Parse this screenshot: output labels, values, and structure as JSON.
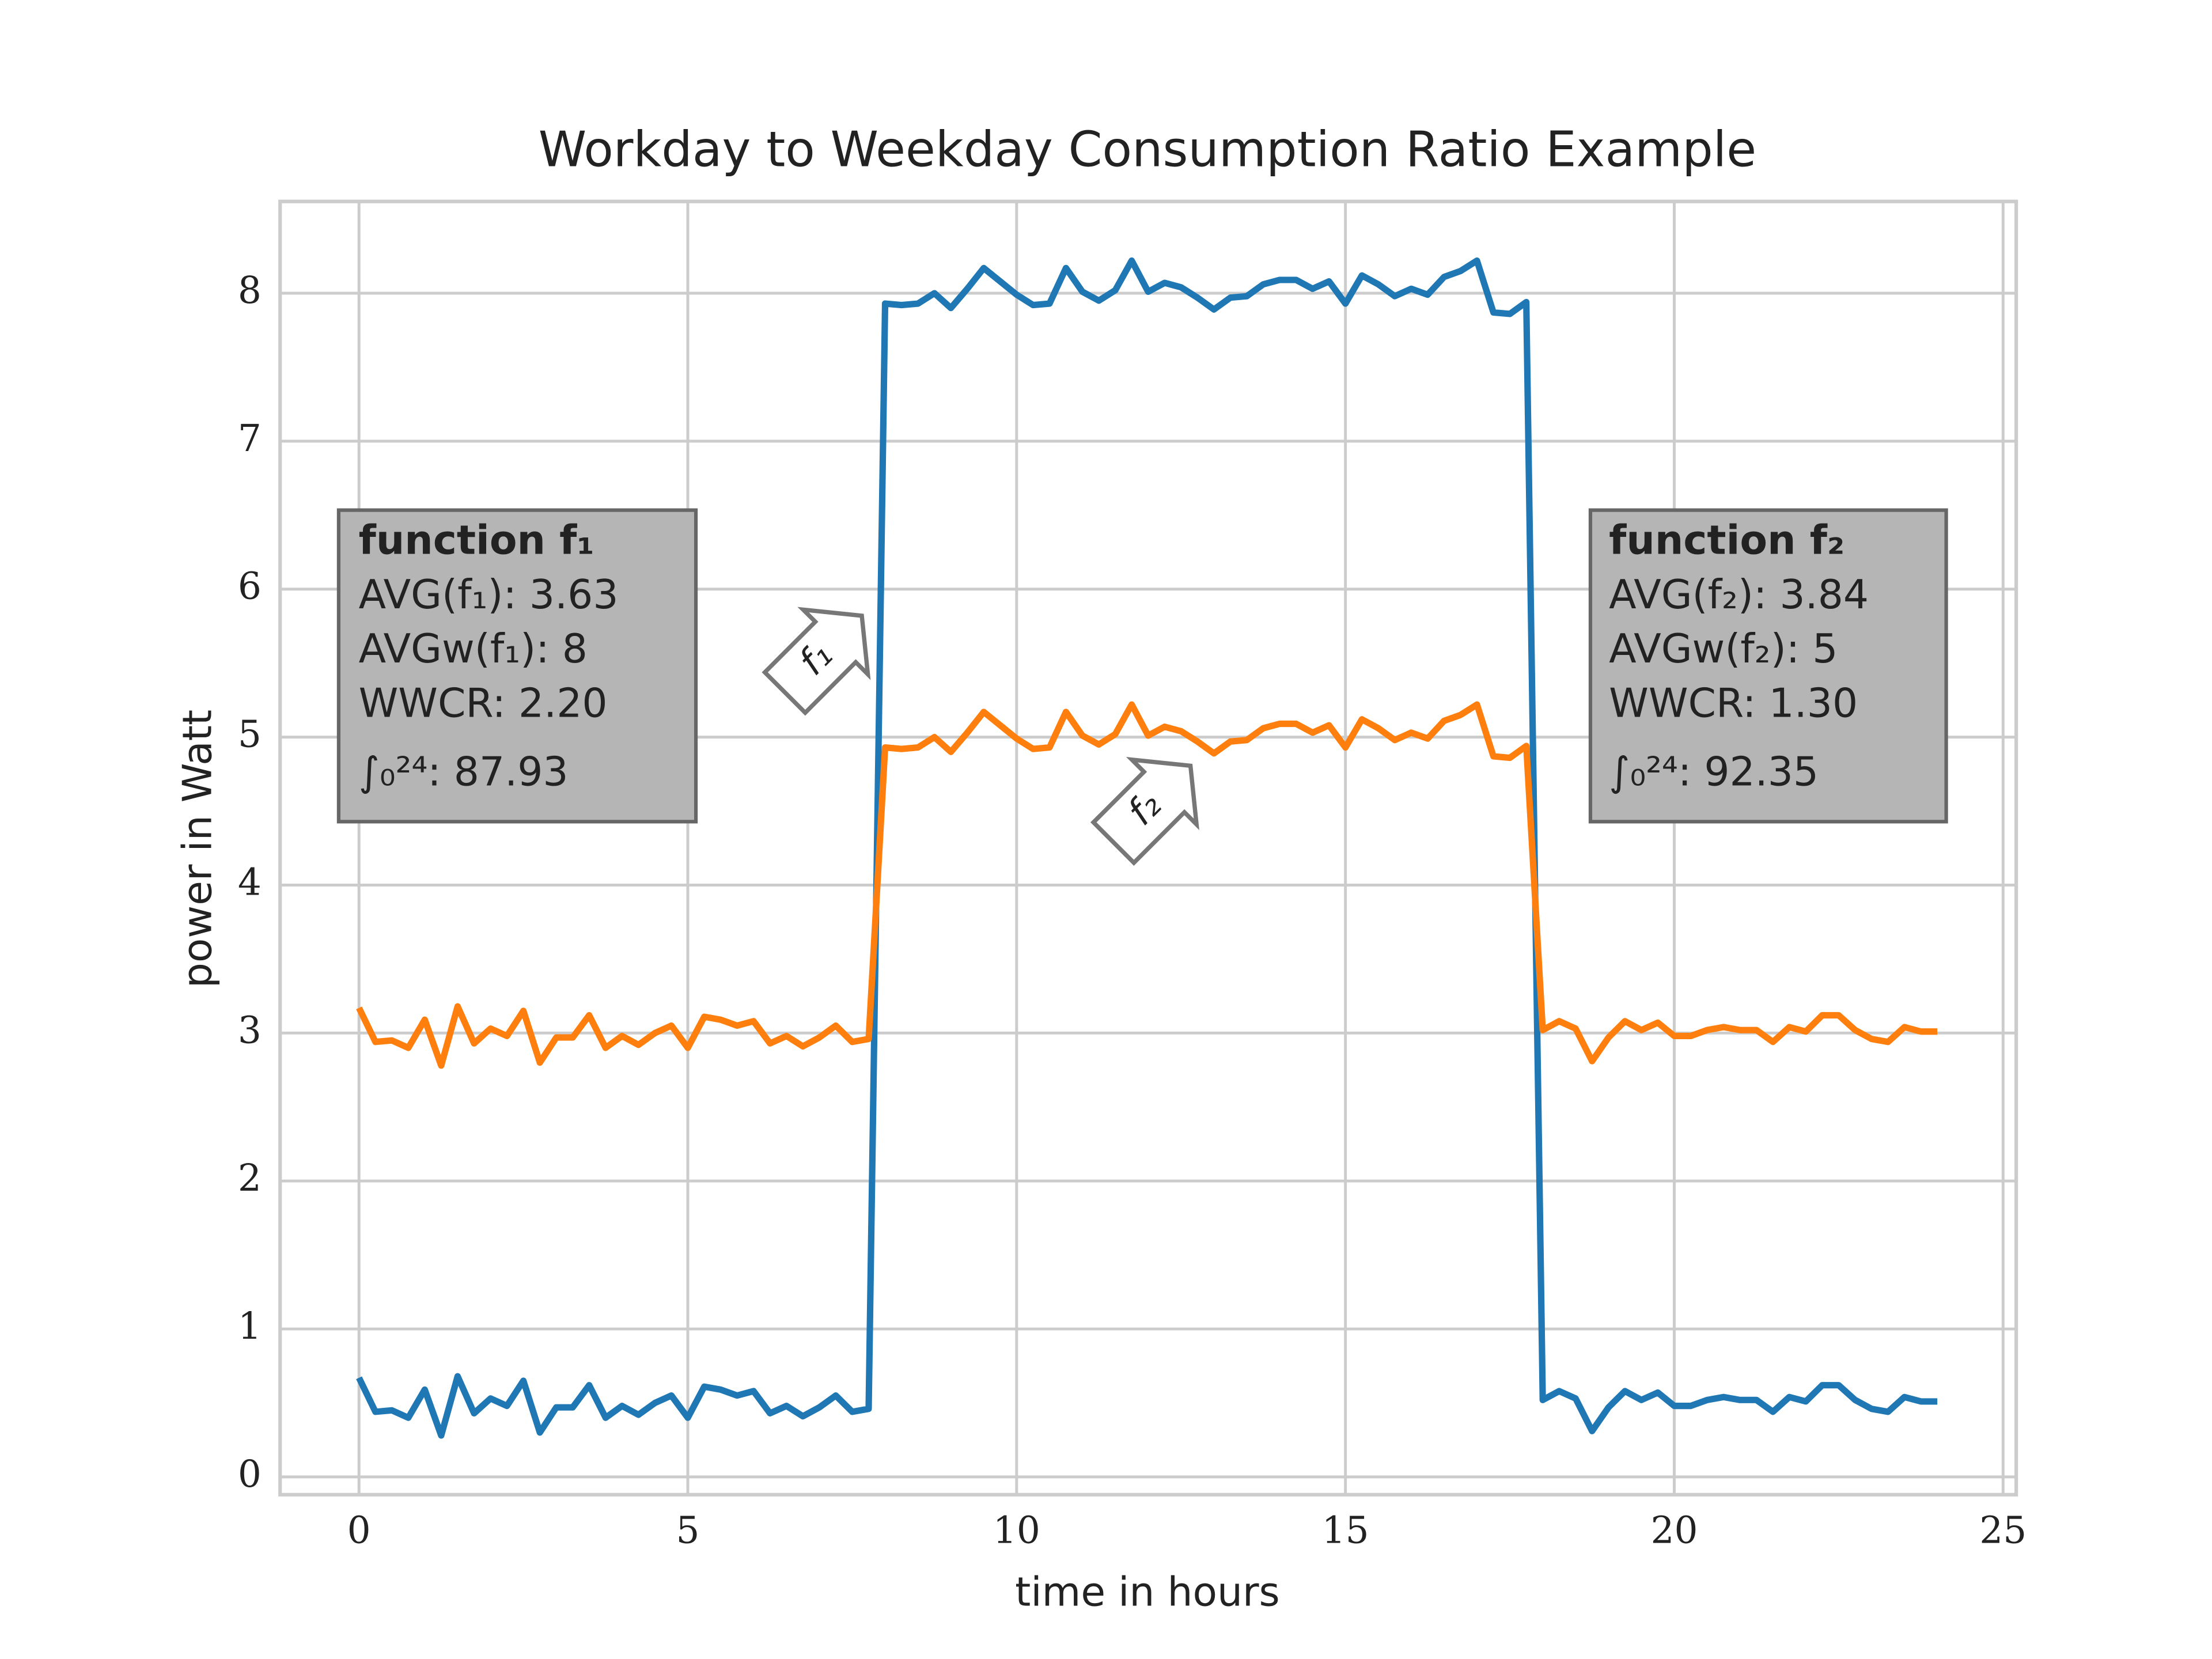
{
  "chart_data": {
    "type": "line",
    "title": "Workday to Weekday Consumption Ratio Example",
    "xlabel": "time in hours",
    "ylabel": "power in Watt",
    "xlim": [
      -1.2,
      25.2
    ],
    "ylim": [
      -0.12,
      8.62
    ],
    "xticks": [
      0,
      5,
      10,
      15,
      20,
      25
    ],
    "yticks": [
      0,
      1,
      2,
      3,
      4,
      5,
      6,
      7,
      8
    ],
    "grid": true,
    "x": [
      0,
      0.25,
      0.5,
      0.75,
      1,
      1.25,
      1.5,
      1.75,
      2,
      2.25,
      2.5,
      2.75,
      3,
      3.25,
      3.5,
      3.75,
      4,
      4.25,
      4.5,
      4.75,
      5,
      5.25,
      5.5,
      5.75,
      6,
      6.25,
      6.5,
      6.75,
      7,
      7.25,
      7.5,
      7.75,
      8,
      8.25,
      8.5,
      8.75,
      9,
      9.25,
      9.5,
      9.75,
      10,
      10.25,
      10.5,
      10.75,
      11,
      11.25,
      11.5,
      11.75,
      12,
      12.25,
      12.5,
      12.75,
      13,
      13.25,
      13.5,
      13.75,
      14,
      14.25,
      14.5,
      14.75,
      15,
      15.25,
      15.5,
      15.75,
      16,
      16.25,
      16.5,
      16.75,
      17,
      17.25,
      17.5,
      17.75,
      18,
      18.25,
      18.5,
      18.75,
      19,
      19.25,
      19.5,
      19.75,
      20,
      20.25,
      20.5,
      20.75,
      21,
      21.25,
      21.5,
      21.75,
      22,
      22.25,
      22.5,
      22.75,
      23,
      23.25,
      23.5,
      23.75,
      24
    ],
    "series": [
      {
        "color": "#1f77b4",
        "values": [
          0.67,
          0.44,
          0.45,
          0.4,
          0.59,
          0.28,
          0.68,
          0.43,
          0.53,
          0.48,
          0.65,
          0.3,
          0.47,
          0.47,
          0.62,
          0.4,
          0.48,
          0.42,
          0.5,
          0.55,
          0.4,
          0.61,
          0.59,
          0.55,
          0.58,
          0.43,
          0.48,
          0.41,
          0.47,
          0.55,
          0.44,
          0.46,
          7.93,
          7.92,
          7.93,
          8.0,
          7.9,
          8.03,
          8.17,
          8.08,
          7.99,
          7.92,
          7.93,
          8.17,
          8.01,
          7.95,
          8.02,
          8.22,
          8.01,
          8.07,
          8.04,
          7.97,
          7.89,
          7.97,
          7.98,
          8.06,
          8.09,
          8.09,
          8.03,
          8.08,
          7.93,
          8.12,
          8.06,
          7.98,
          8.03,
          7.99,
          8.11,
          8.15,
          8.22,
          7.87,
          7.86,
          7.94,
          0.52,
          0.58,
          0.53,
          0.31,
          0.47,
          0.58,
          0.52,
          0.57,
          0.48,
          0.48,
          0.52,
          0.54,
          0.52,
          0.52,
          0.44,
          0.54,
          0.51,
          0.62,
          0.62,
          0.52,
          0.46,
          0.44,
          0.54,
          0.51,
          0.51
        ]
      },
      {
        "color": "#ff7f0e",
        "values": [
          3.17,
          2.94,
          2.95,
          2.9,
          3.09,
          2.78,
          3.18,
          2.93,
          3.03,
          2.98,
          3.15,
          2.8,
          2.97,
          2.97,
          3.12,
          2.9,
          2.98,
          2.92,
          3.0,
          3.05,
          2.9,
          3.11,
          3.09,
          3.05,
          3.08,
          2.93,
          2.98,
          2.91,
          2.97,
          3.05,
          2.94,
          2.96,
          4.93,
          4.92,
          4.93,
          5.0,
          4.9,
          5.03,
          5.17,
          5.08,
          4.99,
          4.92,
          4.93,
          5.17,
          5.01,
          4.95,
          5.02,
          5.22,
          5.01,
          5.07,
          5.04,
          4.97,
          4.89,
          4.97,
          4.98,
          5.06,
          5.09,
          5.09,
          5.03,
          5.08,
          4.93,
          5.12,
          5.06,
          4.98,
          5.03,
          4.99,
          5.11,
          5.15,
          5.22,
          4.87,
          4.86,
          4.94,
          3.02,
          3.08,
          3.03,
          2.81,
          2.97,
          3.08,
          3.02,
          3.07,
          2.98,
          2.98,
          3.02,
          3.04,
          3.02,
          3.02,
          2.94,
          3.04,
          3.01,
          3.12,
          3.12,
          3.02,
          2.96,
          2.94,
          3.04,
          3.01,
          3.01
        ]
      }
    ],
    "boxes": [
      {
        "lines": [
          "function f₁",
          "AVG(f₁): 3.63",
          "AVGw(f₁): 8",
          "WWCR: 2.20",
          "∫₀²⁴: 87.93"
        ]
      },
      {
        "lines": [
          "function f₂",
          "AVG(f₂): 3.84",
          "AVGw(f₂): 5",
          "WWCR: 1.30",
          "∫₀²⁴: 92.35"
        ]
      }
    ],
    "callouts": [
      "f₁",
      "f₂"
    ]
  }
}
